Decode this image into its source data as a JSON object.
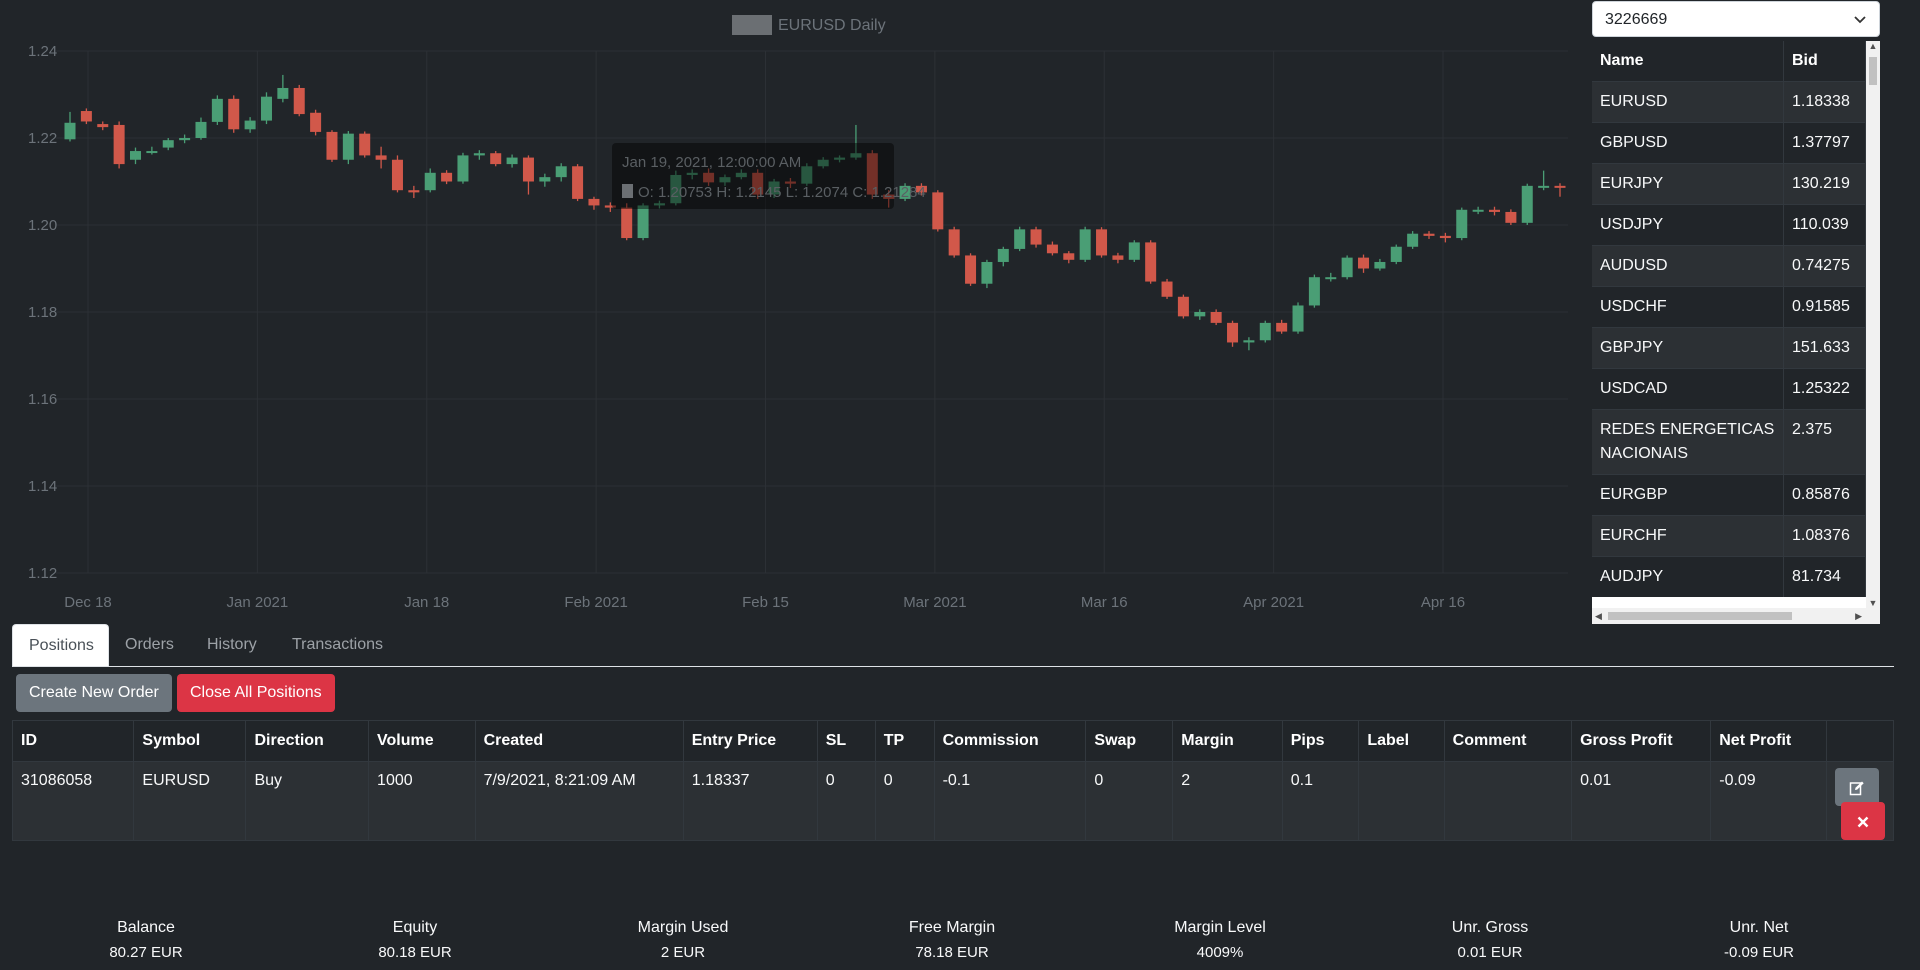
{
  "chart_data": {
    "type": "candlestick",
    "title": "EURUSD Daily",
    "y_ticks": [
      "1.24",
      "1.22",
      "1.20",
      "1.18",
      "1.16",
      "1.14",
      "1.12"
    ],
    "ylim": [
      1.12,
      1.24
    ],
    "x_ticks": [
      "Dec 18",
      "Jan 2021",
      "Jan 18",
      "Feb 2021",
      "Feb 15",
      "Mar 2021",
      "Mar 16",
      "Apr 2021",
      "Apr 16"
    ],
    "tooltip": {
      "date": "Jan 19, 2021, 12:00:00 AM",
      "ohlc": "O: 1.20753  H: 1.2145  L: 1.2074  C: 1.21284"
    },
    "ohlc": [
      [
        1.2197,
        1.2235,
        1.2192,
        1.226
      ],
      [
        1.2262,
        1.2238,
        1.2232,
        1.2268
      ],
      [
        1.2232,
        1.2225,
        1.2218,
        1.2238
      ],
      [
        1.223,
        1.214,
        1.213,
        1.2238
      ],
      [
        1.215,
        1.217,
        1.214,
        1.2178
      ],
      [
        1.217,
        1.217,
        1.2162,
        1.218
      ],
      [
        1.2178,
        1.2195,
        1.2172,
        1.22
      ],
      [
        1.2195,
        1.22,
        1.2188,
        1.2208
      ],
      [
        1.22,
        1.2237,
        1.2196,
        1.2247
      ],
      [
        1.2237,
        1.229,
        1.223,
        1.2298
      ],
      [
        1.229,
        1.222,
        1.2212,
        1.2298
      ],
      [
        1.222,
        1.224,
        1.2212,
        1.2248
      ],
      [
        1.224,
        1.2295,
        1.2232,
        1.2305
      ],
      [
        1.229,
        1.2315,
        1.2282,
        1.2345
      ],
      [
        1.2315,
        1.2255,
        1.225,
        1.2322
      ],
      [
        1.2258,
        1.2214,
        1.2206,
        1.2265
      ],
      [
        1.2214,
        1.215,
        1.2145,
        1.2218
      ],
      [
        1.215,
        1.221,
        1.214,
        1.2216
      ],
      [
        1.221,
        1.216,
        1.2155,
        1.2215
      ],
      [
        1.216,
        1.215,
        1.213,
        1.218
      ],
      [
        1.215,
        1.208,
        1.2075,
        1.216
      ],
      [
        1.208,
        1.2075,
        1.2062,
        1.209
      ],
      [
        1.208,
        1.212,
        1.2075,
        1.213
      ],
      [
        1.212,
        1.21,
        1.2094,
        1.2126
      ],
      [
        1.21,
        1.216,
        1.2095,
        1.2166
      ],
      [
        1.216,
        1.2165,
        1.215,
        1.2172
      ],
      [
        1.2165,
        1.214,
        1.2135,
        1.217
      ],
      [
        1.214,
        1.2155,
        1.2132,
        1.2162
      ],
      [
        1.2155,
        1.21,
        1.207,
        1.216
      ],
      [
        1.21,
        1.211,
        1.2088,
        1.2118
      ],
      [
        1.211,
        1.2135,
        1.21,
        1.2142
      ],
      [
        1.2135,
        1.206,
        1.2055,
        1.214
      ],
      [
        1.206,
        1.2045,
        1.2035,
        1.2065
      ],
      [
        1.2045,
        1.204,
        1.203,
        1.2052
      ],
      [
        1.204,
        1.197,
        1.1965,
        1.205
      ],
      [
        1.197,
        1.2045,
        1.1965,
        1.205
      ],
      [
        1.2045,
        1.205,
        1.2038,
        1.2056
      ],
      [
        1.205,
        1.2115,
        1.2045,
        1.2125
      ],
      [
        1.2115,
        1.212,
        1.2105,
        1.2128
      ],
      [
        1.212,
        1.2098,
        1.209,
        1.213
      ],
      [
        1.2098,
        1.211,
        1.209,
        1.2116
      ],
      [
        1.211,
        1.212,
        1.2105,
        1.2128
      ],
      [
        1.212,
        1.207,
        1.206,
        1.2128
      ],
      [
        1.207,
        1.21,
        1.2062,
        1.2106
      ],
      [
        1.21,
        1.2095,
        1.2085,
        1.2108
      ],
      [
        1.2095,
        1.2135,
        1.209,
        1.2142
      ],
      [
        1.2135,
        1.215,
        1.213,
        1.2156
      ],
      [
        1.215,
        1.2155,
        1.2144,
        1.216
      ],
      [
        1.2155,
        1.2165,
        1.215,
        1.223
      ],
      [
        1.2165,
        1.207,
        1.206,
        1.2172
      ],
      [
        1.207,
        1.206,
        1.204,
        1.208
      ],
      [
        1.206,
        1.209,
        1.2055,
        1.2096
      ],
      [
        1.209,
        1.2075,
        1.2068,
        1.2096
      ],
      [
        1.2075,
        1.199,
        1.1985,
        1.208
      ],
      [
        1.199,
        1.193,
        1.1925,
        1.1996
      ],
      [
        1.193,
        1.1865,
        1.186,
        1.1935
      ],
      [
        1.1865,
        1.1915,
        1.1855,
        1.192
      ],
      [
        1.1915,
        1.1945,
        1.1905,
        1.195
      ],
      [
        1.1945,
        1.199,
        1.194,
        1.1996
      ],
      [
        1.199,
        1.1955,
        1.1948,
        1.1996
      ],
      [
        1.1955,
        1.1935,
        1.193,
        1.1962
      ],
      [
        1.1935,
        1.192,
        1.1912,
        1.194
      ],
      [
        1.192,
        1.199,
        1.1915,
        1.1996
      ],
      [
        1.199,
        1.193,
        1.1925,
        1.1995
      ],
      [
        1.193,
        1.192,
        1.1912,
        1.1936
      ],
      [
        1.192,
        1.196,
        1.1915,
        1.1965
      ],
      [
        1.196,
        1.187,
        1.1865,
        1.1965
      ],
      [
        1.187,
        1.1835,
        1.183,
        1.1876
      ],
      [
        1.1835,
        1.179,
        1.1785,
        1.184
      ],
      [
        1.179,
        1.18,
        1.1782,
        1.1806
      ],
      [
        1.18,
        1.1775,
        1.177,
        1.1806
      ],
      [
        1.1775,
        1.173,
        1.172,
        1.178
      ],
      [
        1.173,
        1.1735,
        1.1712,
        1.1742
      ],
      [
        1.1735,
        1.1775,
        1.173,
        1.178
      ],
      [
        1.1775,
        1.1755,
        1.175,
        1.1782
      ],
      [
        1.1755,
        1.1815,
        1.175,
        1.1822
      ],
      [
        1.1815,
        1.188,
        1.181,
        1.1886
      ],
      [
        1.188,
        1.188,
        1.187,
        1.189
      ],
      [
        1.188,
        1.1925,
        1.1875,
        1.193
      ],
      [
        1.1925,
        1.19,
        1.189,
        1.1932
      ],
      [
        1.19,
        1.1915,
        1.1895,
        1.1922
      ],
      [
        1.1915,
        1.195,
        1.191,
        1.1955
      ],
      [
        1.195,
        1.198,
        1.1945,
        1.1986
      ],
      [
        1.198,
        1.1975,
        1.1968,
        1.1986
      ],
      [
        1.1975,
        1.197,
        1.196,
        1.1982
      ],
      [
        1.197,
        1.2035,
        1.1965,
        1.204
      ],
      [
        1.2035,
        1.2035,
        1.2025,
        1.2042
      ],
      [
        1.2035,
        1.203,
        1.2022,
        1.2042
      ],
      [
        1.203,
        1.2005,
        1.2,
        1.2036
      ],
      [
        1.2005,
        1.209,
        1.2,
        1.2095
      ],
      [
        1.209,
        1.209,
        1.208,
        1.2125
      ],
      [
        1.209,
        1.2088,
        1.2065,
        1.2096
      ]
    ]
  },
  "account": {
    "selected": "3226669"
  },
  "watchlist": {
    "headers": [
      "Name",
      "Bid"
    ],
    "rows": [
      {
        "name": "EURUSD",
        "bid": "1.18338"
      },
      {
        "name": "GBPUSD",
        "bid": "1.37797"
      },
      {
        "name": "EURJPY",
        "bid": "130.219"
      },
      {
        "name": "USDJPY",
        "bid": "110.039"
      },
      {
        "name": "AUDUSD",
        "bid": "0.74275"
      },
      {
        "name": "USDCHF",
        "bid": "0.91585"
      },
      {
        "name": "GBPJPY",
        "bid": "151.633"
      },
      {
        "name": "USDCAD",
        "bid": "1.25322"
      },
      {
        "name": "REDES ENERGETICAS NACIONAIS",
        "bid": "2.375"
      },
      {
        "name": "EURGBP",
        "bid": "0.85876"
      },
      {
        "name": "EURCHF",
        "bid": "1.08376"
      },
      {
        "name": "AUDJPY",
        "bid": "81.734"
      }
    ]
  },
  "tabs": [
    "Positions",
    "Orders",
    "History",
    "Transactions"
  ],
  "buttons": {
    "create": "Create New Order",
    "close_all": "Close All Positions"
  },
  "positions": {
    "headers": [
      "ID",
      "Symbol",
      "Direction",
      "Volume",
      "Created",
      "Entry Price",
      "SL",
      "TP",
      "Commission",
      "Swap",
      "Margin",
      "Pips",
      "Label",
      "Comment",
      "Gross Profit",
      "Net Profit"
    ],
    "rows": [
      [
        "31086058",
        "EURUSD",
        "Buy",
        "1000",
        "7/9/2021, 8:21:09 AM",
        "1.18337",
        "0",
        "0",
        "-0.1",
        "0",
        "2",
        "0.1",
        "",
        "",
        "0.01",
        "-0.09"
      ]
    ]
  },
  "summary": [
    {
      "label": "Balance",
      "value": "80.27 EUR"
    },
    {
      "label": "Equity",
      "value": "80.18 EUR"
    },
    {
      "label": "Margin Used",
      "value": "2 EUR"
    },
    {
      "label": "Free Margin",
      "value": "78.18 EUR"
    },
    {
      "label": "Margin Level",
      "value": "4009%"
    },
    {
      "label": "Unr. Gross",
      "value": "0.01 EUR"
    },
    {
      "label": "Unr. Net",
      "value": "-0.09 EUR"
    }
  ],
  "colors": {
    "up": "#4a9e75",
    "down": "#d1584a",
    "grid": "#2c3035",
    "axis_text": "#6c737a"
  }
}
